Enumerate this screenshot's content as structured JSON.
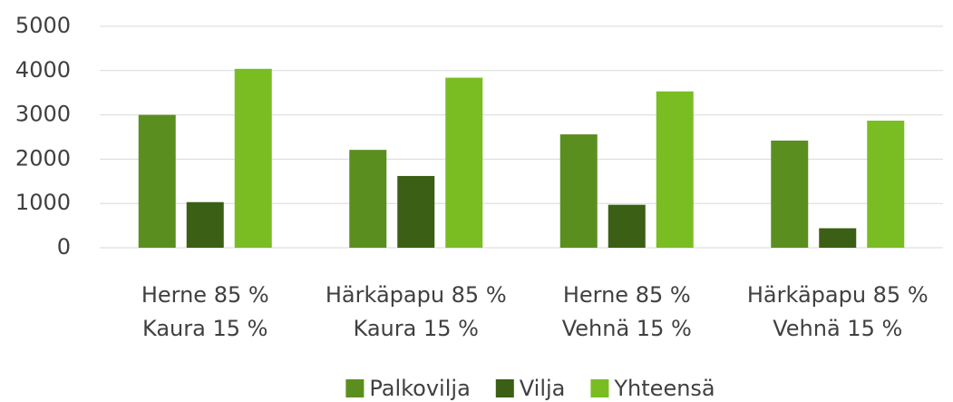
{
  "chart_data": {
    "type": "bar",
    "categories": [
      [
        "Herne 85 %",
        "Kaura 15 %"
      ],
      [
        "Härkäpapu 85 %",
        "Kaura 15 %"
      ],
      [
        "Herne 85 %",
        "Vehnä 15 %"
      ],
      [
        "Härkäpapu 85 %",
        "Vehnä 15 %"
      ]
    ],
    "series": [
      {
        "name": "Palkovilja",
        "color": "#5a8f20",
        "values": [
          3000,
          2210,
          2560,
          2420
        ]
      },
      {
        "name": "Vilja",
        "color": "#3b5f14",
        "values": [
          1030,
          1620,
          970,
          440
        ]
      },
      {
        "name": "Yhteensä",
        "color": "#79bd23",
        "values": [
          4040,
          3840,
          3530,
          2870
        ]
      }
    ],
    "ylim": [
      0,
      5000
    ],
    "yticks": [
      0,
      1000,
      2000,
      3000,
      4000,
      5000
    ],
    "grid": true,
    "legend": "bottom"
  }
}
